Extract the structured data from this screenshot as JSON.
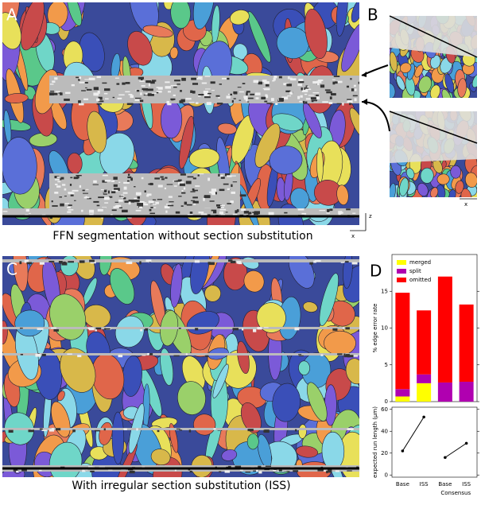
{
  "panels": {
    "A": {
      "label": "A",
      "caption": "FFN segmentation without section substitution",
      "axis_labels": [
        "z",
        "x"
      ]
    },
    "B": {
      "label": "B",
      "axis_label": "x"
    },
    "C": {
      "label": "C",
      "caption": "With irregular section substitution (ISS)"
    },
    "D": {
      "label": "D"
    }
  },
  "chart_data": [
    {
      "type": "bar",
      "stacked": true,
      "ylabel": "% edge error rate",
      "ylim": [
        0,
        20
      ],
      "yticks": [
        0,
        5,
        10,
        15
      ],
      "legend": "upper left",
      "series": [
        {
          "name": "merged",
          "color": "#ffff00",
          "values": [
            0.7,
            2.5,
            0,
            0
          ]
        },
        {
          "name": "split",
          "color": "#b000b0",
          "values": [
            1.0,
            1.2,
            2.6,
            2.7
          ]
        },
        {
          "name": "omitted",
          "color": "#ff0000",
          "values": [
            13.1,
            8.7,
            14.4,
            10.5
          ]
        }
      ]
    },
    {
      "type": "line",
      "ylabel": "expected run length (µm)",
      "categories": [
        "Base",
        "ISS",
        "Base",
        "ISS"
      ],
      "group_label": "Consensus",
      "ylim": [
        -2,
        62
      ],
      "yticks": [
        0,
        20,
        40,
        60
      ],
      "series": [
        {
          "color": "#000000",
          "values": [
            22,
            53,
            null,
            null
          ]
        },
        {
          "color": "#000000",
          "values": [
            null,
            null,
            16,
            29
          ]
        }
      ]
    }
  ]
}
